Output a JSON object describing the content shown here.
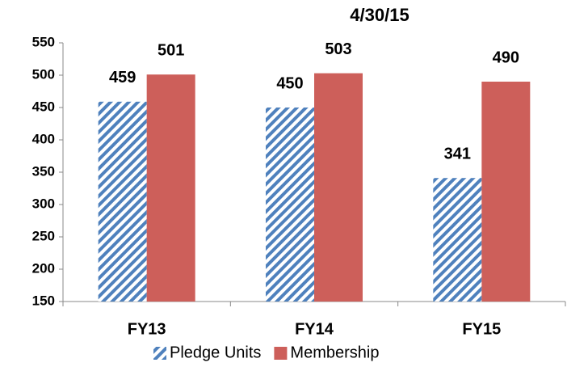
{
  "chart_data": {
    "type": "bar",
    "title": "4/30/15",
    "categories": [
      "FY13",
      "FY14",
      "FY15"
    ],
    "series": [
      {
        "name": "Pledge Units",
        "color": "#4f81bd",
        "pattern": "hatch",
        "values": [
          459,
          450,
          341
        ]
      },
      {
        "name": "Membership",
        "color": "#cd5f5a",
        "values": [
          501,
          503,
          490
        ]
      }
    ],
    "ylim": [
      150,
      550
    ],
    "yticks": [
      150,
      200,
      250,
      300,
      350,
      400,
      450,
      500,
      550
    ],
    "grid": false,
    "legend": "bottom"
  }
}
